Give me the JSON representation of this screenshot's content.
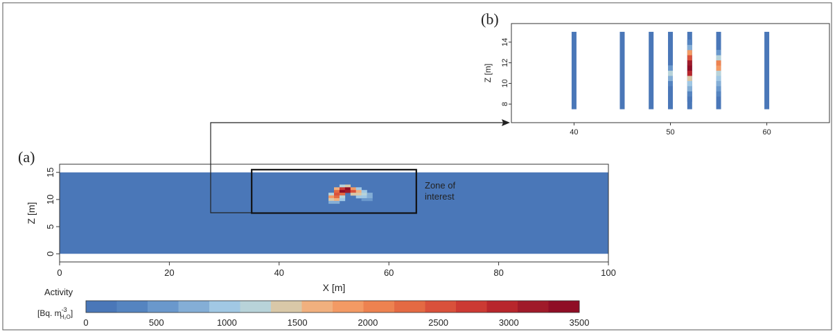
{
  "figure": {
    "panel_a_label": "(a)",
    "panel_b_label": "(b)",
    "zone_label_line1": "Zone of",
    "zone_label_line2": "interest",
    "colorbar_title": "Activity",
    "colorbar_unit_main": "[Bq. m",
    "colorbar_unit_sup": "-3",
    "colorbar_unit_sub": "H₂O",
    "colorbar_unit_close": "]"
  },
  "colors": {
    "background_field": "#4a77b8",
    "scale": [
      "#4a77b8",
      "#5584c0",
      "#6a98cc",
      "#84aed6",
      "#a1c8e4",
      "#b8d3d9",
      "#d9c8a8",
      "#f1b07e",
      "#f39a64",
      "#ed8250",
      "#e46a43",
      "#d9513b",
      "#cc3a33",
      "#b8262c",
      "#a01a29",
      "#8f0d25"
    ]
  },
  "chart_data": [
    {
      "type": "heatmap",
      "panel": "(a)",
      "xlabel": "X [m]",
      "ylabel": "Z [m]",
      "xlim": [
        0,
        100
      ],
      "ylim": [
        -1.5,
        16.5
      ],
      "x_ticks": [
        "0",
        "20",
        "40",
        "60",
        "80",
        "100"
      ],
      "y_ticks": [
        "0",
        "5",
        "10",
        "15"
      ],
      "domain": {
        "x": [
          0,
          100
        ],
        "z": [
          0,
          15
        ]
      },
      "background_activity": 0,
      "plume_peak_activity": 3500,
      "plume_cells": [
        {
          "x": 51.5,
          "z": 12.5,
          "v": 1300
        },
        {
          "x": 52.5,
          "z": 12.5,
          "v": 1500
        },
        {
          "x": 50.5,
          "z": 12.0,
          "v": 1700
        },
        {
          "x": 51.5,
          "z": 12.0,
          "v": 2800
        },
        {
          "x": 52.5,
          "z": 12.0,
          "v": 3300
        },
        {
          "x": 53.5,
          "z": 12.0,
          "v": 1800
        },
        {
          "x": 54.5,
          "z": 12.0,
          "v": 900
        },
        {
          "x": 50.5,
          "z": 11.5,
          "v": 2200
        },
        {
          "x": 51.5,
          "z": 11.5,
          "v": 3400
        },
        {
          "x": 52.5,
          "z": 11.5,
          "v": 3200
        },
        {
          "x": 53.5,
          "z": 11.5,
          "v": 2600
        },
        {
          "x": 54.5,
          "z": 11.5,
          "v": 1600
        },
        {
          "x": 55.5,
          "z": 11.5,
          "v": 900
        },
        {
          "x": 49.5,
          "z": 11.0,
          "v": 1200
        },
        {
          "x": 50.5,
          "z": 11.0,
          "v": 2600
        },
        {
          "x": 51.5,
          "z": 11.0,
          "v": 2400
        },
        {
          "x": 53.5,
          "z": 11.0,
          "v": 1500
        },
        {
          "x": 54.5,
          "z": 11.0,
          "v": 1400
        },
        {
          "x": 55.5,
          "z": 11.0,
          "v": 1200
        },
        {
          "x": 56.5,
          "z": 11.0,
          "v": 700
        },
        {
          "x": 49.5,
          "z": 10.5,
          "v": 1800
        },
        {
          "x": 50.5,
          "z": 10.5,
          "v": 2300
        },
        {
          "x": 51.5,
          "z": 10.5,
          "v": 1300
        },
        {
          "x": 54.5,
          "z": 10.5,
          "v": 900
        },
        {
          "x": 55.5,
          "z": 10.5,
          "v": 1000
        },
        {
          "x": 56.5,
          "z": 10.5,
          "v": 800
        },
        {
          "x": 49.5,
          "z": 10.0,
          "v": 1400
        },
        {
          "x": 50.5,
          "z": 10.0,
          "v": 1600
        },
        {
          "x": 51.5,
          "z": 10.0,
          "v": 900
        },
        {
          "x": 55.5,
          "z": 10.0,
          "v": 600
        },
        {
          "x": 56.5,
          "z": 10.0,
          "v": 500
        },
        {
          "x": 49.5,
          "z": 9.5,
          "v": 800
        },
        {
          "x": 50.5,
          "z": 9.5,
          "v": 700
        }
      ],
      "zone_of_interest": {
        "x": [
          35,
          65
        ],
        "z": [
          7.5,
          15.5
        ]
      }
    },
    {
      "type": "heatmap",
      "panel": "(b)",
      "xlabel": "",
      "ylabel": "Z [m]",
      "xlim": [
        33.5,
        66.5
      ],
      "ylim": [
        6.2,
        15.8
      ],
      "x_ticks": [
        "40",
        "50",
        "60"
      ],
      "y_ticks": [
        "8",
        "10",
        "12",
        "14"
      ],
      "columns": [
        {
          "x": 40,
          "values": []
        },
        {
          "x": 45,
          "values": []
        },
        {
          "x": 48,
          "values": []
        },
        {
          "x": 50,
          "values": [
            {
              "z": 10.0,
              "v": 300
            },
            {
              "z": 10.5,
              "v": 700
            },
            {
              "z": 11.0,
              "v": 1100
            },
            {
              "z": 11.5,
              "v": 500
            }
          ]
        },
        {
          "x": 52,
          "values": [
            {
              "z": 8.5,
              "v": 200
            },
            {
              "z": 9.0,
              "v": 400
            },
            {
              "z": 9.5,
              "v": 700
            },
            {
              "z": 10.0,
              "v": 900
            },
            {
              "z": 10.5,
              "v": 1400
            },
            {
              "z": 11.0,
              "v": 3000
            },
            {
              "z": 11.5,
              "v": 3300
            },
            {
              "z": 12.0,
              "v": 3200
            },
            {
              "z": 12.5,
              "v": 2500
            },
            {
              "z": 13.0,
              "v": 1800
            },
            {
              "z": 13.5,
              "v": 700
            },
            {
              "z": 14.0,
              "v": 300
            }
          ]
        },
        {
          "x": 55,
          "values": [
            {
              "z": 9.0,
              "v": 300
            },
            {
              "z": 9.5,
              "v": 500
            },
            {
              "z": 10.0,
              "v": 700
            },
            {
              "z": 10.5,
              "v": 900
            },
            {
              "z": 11.0,
              "v": 1300
            },
            {
              "z": 11.5,
              "v": 1900
            },
            {
              "z": 12.0,
              "v": 2100
            },
            {
              "z": 12.5,
              "v": 1200
            },
            {
              "z": 13.0,
              "v": 600
            }
          ]
        },
        {
          "x": 60,
          "values": []
        }
      ],
      "column_z_range": [
        7.5,
        15.0
      ]
    },
    {
      "type": "colorbar",
      "range": [
        0,
        3500
      ],
      "ticks": [
        "0",
        "500",
        "1000",
        "1500",
        "2000",
        "2500",
        "3000",
        "3500"
      ]
    }
  ]
}
